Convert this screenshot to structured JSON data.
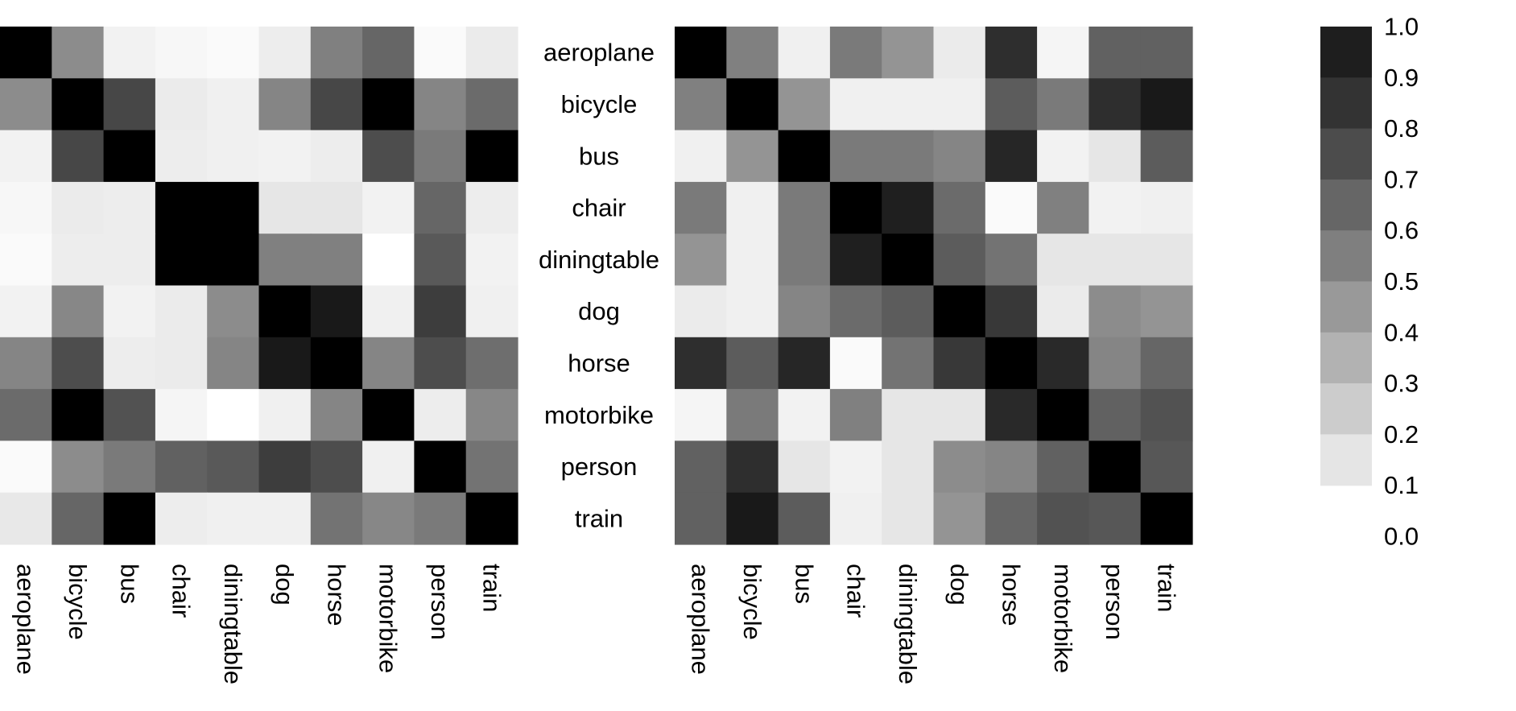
{
  "chart_data": [
    {
      "type": "heatmap",
      "categories": [
        "aeroplane",
        "bicycle",
        "bus",
        "chair",
        "diningtable",
        "dog",
        "horse",
        "motorbike",
        "person",
        "train"
      ],
      "rows": [
        "aeroplane",
        "bicycle",
        "bus",
        "chair",
        "diningtable",
        "dog",
        "horse",
        "motorbike",
        "person",
        "train"
      ],
      "columns": [
        "aeroplane",
        "bicycle",
        "bus",
        "chair",
        "diningtable",
        "dog",
        "horse",
        "motorbike",
        "person",
        "train"
      ],
      "values": [
        [
          1.0,
          0.45,
          0.05,
          0.03,
          0.02,
          0.07,
          0.5,
          0.6,
          0.02,
          0.08
        ],
        [
          0.45,
          1.0,
          0.72,
          0.08,
          0.06,
          0.48,
          0.72,
          1.0,
          0.48,
          0.58
        ],
        [
          0.05,
          0.72,
          1.0,
          0.07,
          0.06,
          0.05,
          0.07,
          0.7,
          0.52,
          1.0
        ],
        [
          0.03,
          0.08,
          0.07,
          1.0,
          1.0,
          0.1,
          0.1,
          0.05,
          0.6,
          0.07
        ],
        [
          0.02,
          0.07,
          0.07,
          1.0,
          1.0,
          0.5,
          0.5,
          0.0,
          0.65,
          0.05
        ],
        [
          0.05,
          0.47,
          0.05,
          0.08,
          0.45,
          1.0,
          0.9,
          0.06,
          0.76,
          0.06
        ],
        [
          0.48,
          0.7,
          0.07,
          0.08,
          0.48,
          0.9,
          1.0,
          0.48,
          0.7,
          0.57
        ],
        [
          0.58,
          1.0,
          0.68,
          0.04,
          0.0,
          0.06,
          0.48,
          1.0,
          0.07,
          0.47
        ],
        [
          0.02,
          0.45,
          0.52,
          0.62,
          0.65,
          0.76,
          0.7,
          0.06,
          1.0,
          0.55
        ],
        [
          0.09,
          0.6,
          1.0,
          0.07,
          0.06,
          0.06,
          0.55,
          0.47,
          0.52,
          1.0
        ]
      ],
      "ylim": [
        0,
        1
      ]
    },
    {
      "type": "heatmap",
      "categories": [
        "aeroplane",
        "bicycle",
        "bus",
        "chair",
        "diningtable",
        "dog",
        "horse",
        "motorbike",
        "person",
        "train"
      ],
      "rows": [
        "aeroplane",
        "bicycle",
        "bus",
        "chair",
        "diningtable",
        "dog",
        "horse",
        "motorbike",
        "person",
        "train"
      ],
      "columns": [
        "aeroplane",
        "bicycle",
        "bus",
        "chair",
        "diningtable",
        "dog",
        "horse",
        "motorbike",
        "person",
        "train"
      ],
      "values": [
        [
          1.0,
          0.5,
          0.06,
          0.52,
          0.42,
          0.08,
          0.82,
          0.04,
          0.62,
          0.62
        ],
        [
          0.5,
          1.0,
          0.42,
          0.06,
          0.06,
          0.06,
          0.64,
          0.52,
          0.82,
          0.9
        ],
        [
          0.06,
          0.42,
          1.0,
          0.52,
          0.52,
          0.48,
          0.85,
          0.05,
          0.1,
          0.64
        ],
        [
          0.52,
          0.06,
          0.52,
          1.0,
          0.88,
          0.58,
          0.02,
          0.5,
          0.05,
          0.06
        ],
        [
          0.42,
          0.06,
          0.52,
          0.88,
          1.0,
          0.64,
          0.55,
          0.1,
          0.1,
          0.1
        ],
        [
          0.08,
          0.06,
          0.48,
          0.58,
          0.64,
          1.0,
          0.78,
          0.08,
          0.45,
          0.42
        ],
        [
          0.82,
          0.64,
          0.85,
          0.02,
          0.55,
          0.78,
          1.0,
          0.84,
          0.48,
          0.6
        ],
        [
          0.04,
          0.52,
          0.05,
          0.5,
          0.1,
          0.1,
          0.84,
          1.0,
          0.62,
          0.68
        ],
        [
          0.62,
          0.82,
          0.1,
          0.05,
          0.1,
          0.45,
          0.48,
          0.62,
          1.0,
          0.66
        ],
        [
          0.62,
          0.9,
          0.64,
          0.06,
          0.1,
          0.42,
          0.6,
          0.68,
          0.66,
          1.0
        ]
      ],
      "ylim": [
        0,
        1
      ]
    }
  ],
  "colorbar": {
    "ticks": [
      "1.0",
      "0.9",
      "0.8",
      "0.7",
      "0.6",
      "0.5",
      "0.4",
      "0.3",
      "0.2",
      "0.1",
      "0.0"
    ],
    "swatches": [
      "#1e1e1e",
      "#333333",
      "#4c4c4c",
      "#666666",
      "#7f7f7f",
      "#999999",
      "#b2b2b2",
      "#cccccc",
      "#e5e5e5"
    ],
    "colors": {
      "low": "#ffffff",
      "high": "#000000"
    }
  }
}
